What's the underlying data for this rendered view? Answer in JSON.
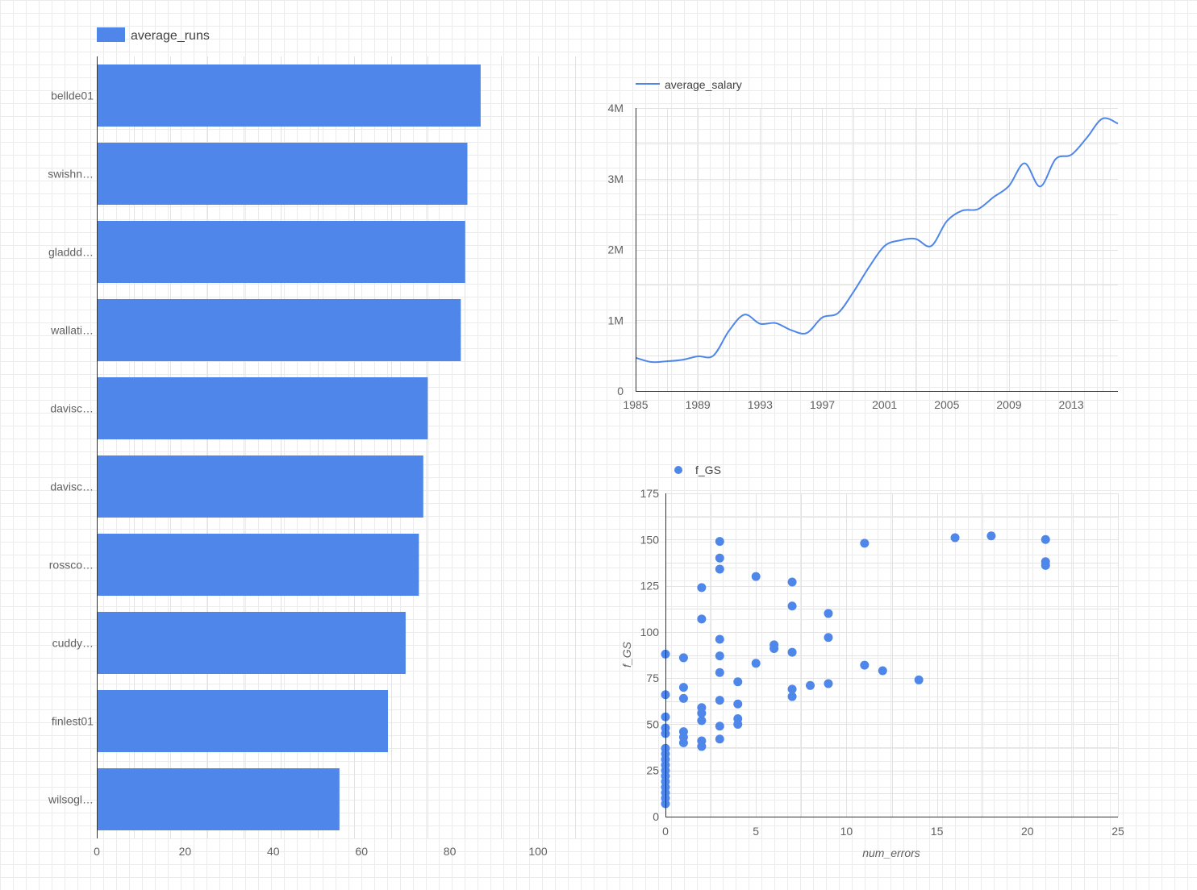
{
  "chart_data": [
    {
      "type": "bar",
      "orientation": "horizontal",
      "legend": {
        "label": "average_runs",
        "position": "top-left"
      },
      "categories": [
        "bellde01",
        "swishn…",
        "gladdd…",
        "wallati…",
        "davisc…",
        "davisc…",
        "rossco…",
        "cuddy…",
        "finlest01",
        "wilsogl…"
      ],
      "series": [
        {
          "name": "average_runs",
          "values": [
            87,
            84,
            83.5,
            82.5,
            75,
            74,
            73,
            70,
            66,
            55
          ]
        }
      ],
      "xlim": [
        0,
        100
      ],
      "xticks": [
        "0",
        "20",
        "40",
        "60",
        "80",
        "100"
      ],
      "grid": true,
      "color": "#4e86ea"
    },
    {
      "type": "line",
      "legend": {
        "label": "average_salary",
        "position": "top-left"
      },
      "series": [
        {
          "name": "average_salary",
          "x": [
            1985,
            1986,
            1987,
            1988,
            1989,
            1990,
            1991,
            1992,
            1993,
            1994,
            1995,
            1996,
            1997,
            1998,
            1999,
            2000,
            2001,
            2002,
            2003,
            2004,
            2005,
            2006,
            2007,
            2008,
            2009,
            2010,
            2011,
            2012,
            2013,
            2014,
            2015,
            2016
          ],
          "y": [
            470000,
            410000,
            420000,
            440000,
            490000,
            500000,
            850000,
            1080000,
            950000,
            960000,
            860000,
            820000,
            1040000,
            1100000,
            1400000,
            1750000,
            2050000,
            2130000,
            2150000,
            2050000,
            2400000,
            2550000,
            2570000,
            2740000,
            2900000,
            3220000,
            2890000,
            3280000,
            3340000,
            3580000,
            3850000,
            3780000
          ]
        }
      ],
      "xlim": [
        1985,
        2016
      ],
      "ylim": [
        0,
        4000000
      ],
      "xticks": [
        "1985",
        "1989",
        "1993",
        "1997",
        "2001",
        "2005",
        "2009",
        "2013"
      ],
      "yticks": [
        "0",
        "1M",
        "2M",
        "3M",
        "4M"
      ],
      "grid": true,
      "color": "#4e86ea"
    },
    {
      "type": "scatter",
      "legend": {
        "label": "f_GS",
        "position": "top-left"
      },
      "xlabel": "num_errors",
      "ylabel": "f_GS",
      "xlim": [
        0,
        25
      ],
      "ylim": [
        0,
        175
      ],
      "xticks": [
        "0",
        "5",
        "10",
        "15",
        "20",
        "25"
      ],
      "yticks": [
        "0",
        "25",
        "50",
        "75",
        "100",
        "125",
        "150",
        "175"
      ],
      "grid": true,
      "color": "#4e86ea",
      "series": [
        {
          "name": "f_GS",
          "points": [
            [
              0,
              88
            ],
            [
              0,
              66
            ],
            [
              0,
              54
            ],
            [
              0,
              48
            ],
            [
              0,
              45
            ],
            [
              0,
              37
            ],
            [
              0,
              34
            ],
            [
              0,
              31
            ],
            [
              0,
              28
            ],
            [
              0,
              25
            ],
            [
              0,
              22
            ],
            [
              0,
              19
            ],
            [
              0,
              16
            ],
            [
              0,
              13
            ],
            [
              0,
              10
            ],
            [
              0,
              7
            ],
            [
              1,
              86
            ],
            [
              1,
              70
            ],
            [
              1,
              64
            ],
            [
              1,
              46
            ],
            [
              1,
              43
            ],
            [
              1,
              40
            ],
            [
              2,
              124
            ],
            [
              2,
              107
            ],
            [
              2,
              59
            ],
            [
              2,
              56
            ],
            [
              2,
              52
            ],
            [
              2,
              41
            ],
            [
              2,
              38
            ],
            [
              3,
              149
            ],
            [
              3,
              140
            ],
            [
              3,
              134
            ],
            [
              3,
              96
            ],
            [
              3,
              87
            ],
            [
              3,
              78
            ],
            [
              3,
              63
            ],
            [
              3,
              49
            ],
            [
              3,
              42
            ],
            [
              4,
              73
            ],
            [
              4,
              61
            ],
            [
              4,
              53
            ],
            [
              4,
              50
            ],
            [
              5,
              130
            ],
            [
              5,
              83
            ],
            [
              6,
              93
            ],
            [
              6,
              91
            ],
            [
              7,
              127
            ],
            [
              7,
              114
            ],
            [
              7,
              89
            ],
            [
              7,
              69
            ],
            [
              7,
              65
            ],
            [
              8,
              71
            ],
            [
              9,
              110
            ],
            [
              9,
              97
            ],
            [
              9,
              72
            ],
            [
              11,
              148
            ],
            [
              11,
              82
            ],
            [
              12,
              79
            ],
            [
              14,
              74
            ],
            [
              16,
              151
            ],
            [
              18,
              152
            ],
            [
              21,
              150
            ],
            [
              21,
              138
            ],
            [
              21,
              136
            ]
          ]
        }
      ]
    }
  ]
}
